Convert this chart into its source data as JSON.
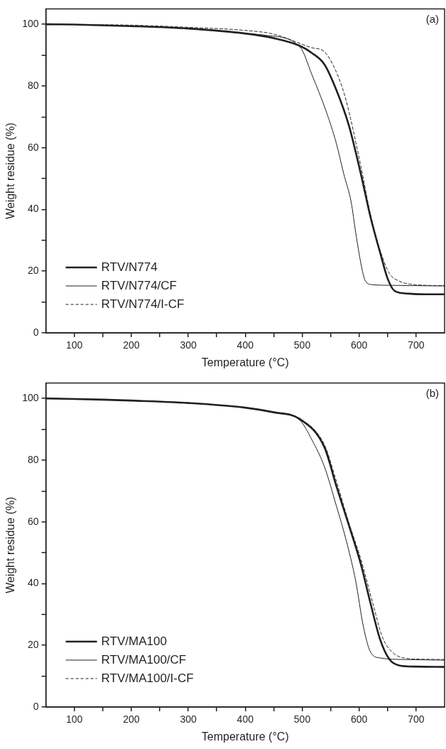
{
  "chart_data": [
    {
      "type": "line",
      "xlabel": "Temperature (°C)",
      "ylabel": "Weight residue (%)",
      "annotations": [
        "(a)"
      ],
      "legend": "bottom left",
      "grid": false,
      "xlim": [
        50,
        750
      ],
      "ylim": [
        0,
        105
      ],
      "xticks": [
        100,
        {
          "value": 150,
          "label": null
        },
        200,
        {
          "value": 250,
          "label": null
        },
        300,
        {
          "value": 350,
          "label": null
        },
        400,
        {
          "value": 450,
          "label": null
        },
        500,
        {
          "value": 550,
          "label": null
        },
        600,
        {
          "value": 650,
          "label": null
        },
        700
      ],
      "yticks": [
        0,
        {
          "value": 10,
          "label": null
        },
        20,
        {
          "value": 30,
          "label": null
        },
        40,
        {
          "value": 50,
          "label": null
        },
        60,
        {
          "value": 70,
          "label": null
        },
        80,
        {
          "value": 90,
          "label": null
        },
        100
      ],
      "series": [
        {
          "name": "RTV/N774",
          "color": "#231f20",
          "line_style": "solid",
          "x": [
            50,
            100,
            200,
            300,
            400,
            450,
            496,
            517,
            539,
            560,
            582,
            603,
            620,
            637,
            650,
            663,
            688,
            720,
            750
          ],
          "values": [
            100,
            99.9,
            99.4,
            98.6,
            97,
            95.5,
            93,
            90.7,
            87,
            78.7,
            67.2,
            51.5,
            37.5,
            25.9,
            17.6,
            13.5,
            12.7,
            12.5,
            12.5
          ]
        },
        {
          "name": "RTV/N774/CF",
          "color": "#231f20",
          "line_style": "solid",
          "x": [
            50,
            100,
            200,
            300,
            400,
            432,
            496,
            517,
            543,
            560,
            573,
            586,
            594,
            603,
            611,
            624,
            660,
            700,
            750
          ],
          "values": [
            100,
            99.9,
            99.4,
            98.6,
            97,
            96.5,
            92.7,
            83.7,
            71.3,
            61.4,
            51.5,
            42.4,
            32.5,
            22.6,
            16.8,
            15.6,
            15.4,
            15.3,
            15.2
          ]
        },
        {
          "name": "RTV/N774/I-CF",
          "color": "#231f20",
          "line_style": "dashed",
          "x": [
            50,
            100,
            200,
            300,
            400,
            450,
            517,
            539,
            560,
            577,
            603,
            620,
            637,
            653,
            670,
            700,
            750
          ],
          "values": [
            100,
            99.9,
            99.7,
            99,
            98,
            96.8,
            92.4,
            91.1,
            84.5,
            75.4,
            54,
            38.3,
            26.7,
            19.3,
            16.8,
            15.6,
            15.3
          ]
        }
      ]
    },
    {
      "type": "line",
      "xlabel": "Temperature (°C)",
      "ylabel": "Weight residue (%)",
      "annotations": [
        "(b)"
      ],
      "legend": "bottom left",
      "grid": false,
      "xlim": [
        50,
        750
      ],
      "ylim": [
        0,
        105
      ],
      "xticks": [
        100,
        {
          "value": 150,
          "label": null
        },
        200,
        {
          "value": 250,
          "label": null
        },
        300,
        {
          "value": 350,
          "label": null
        },
        400,
        {
          "value": 450,
          "label": null
        },
        500,
        {
          "value": 550,
          "label": null
        },
        600,
        {
          "value": 650,
          "label": null
        },
        700
      ],
      "yticks": [
        0,
        {
          "value": 10,
          "label": null
        },
        20,
        {
          "value": 30,
          "label": null
        },
        40,
        {
          "value": 50,
          "label": null
        },
        60,
        {
          "value": 70,
          "label": null
        },
        80,
        {
          "value": 90,
          "label": null
        },
        100
      ],
      "series": [
        {
          "name": "RTV/MA100",
          "color": "#231f20",
          "line_style": "solid",
          "x": [
            50,
            150,
            200,
            300,
            400,
            450,
            496,
            539,
            560,
            582,
            603,
            620,
            637,
            653,
            670,
            700,
            750
          ],
          "values": [
            100,
            99.6,
            99.3,
            98.5,
            97,
            95.5,
            93.3,
            84.2,
            71.6,
            58.9,
            46.3,
            33.6,
            21.8,
            15.5,
            13.5,
            13.1,
            13
          ]
        },
        {
          "name": "RTV/MA100/CF",
          "color": "#231f20",
          "line_style": "solid",
          "x": [
            50,
            150,
            200,
            300,
            400,
            450,
            496,
            517,
            539,
            560,
            577,
            594,
            607,
            620,
            637,
            680,
            750
          ],
          "values": [
            100,
            99.6,
            99.3,
            98.5,
            97,
            95.5,
            92.9,
            86.6,
            77.9,
            65.2,
            54.2,
            40.8,
            26.5,
            17.8,
            15.9,
            15.4,
            15.2
          ]
        },
        {
          "name": "RTV/MA100/I-CF",
          "color": "#231f20",
          "line_style": "dashed",
          "x": [
            50,
            150,
            200,
            300,
            400,
            450,
            496,
            539,
            560,
            582,
            603,
            624,
            641,
            658,
            679,
            710,
            750
          ],
          "values": [
            100,
            99.6,
            99.3,
            98.5,
            97,
            95.5,
            93.4,
            85,
            73.2,
            59.7,
            47.9,
            33.6,
            22.6,
            17.8,
            15.9,
            15.5,
            15.4
          ]
        }
      ]
    }
  ]
}
